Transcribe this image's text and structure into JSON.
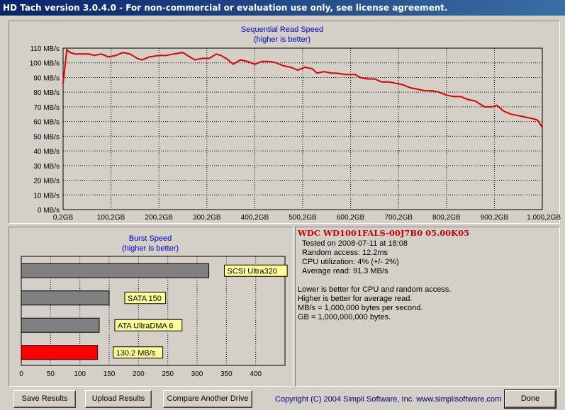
{
  "window": {
    "title": "HD Tach version 3.0.4.0  - For non-commercial or evaluation use only, see license agreement."
  },
  "seq_chart": {
    "title": "Sequential Read Speed",
    "subtitle": "(higher is better)",
    "line_color": "#dd0000"
  },
  "burst_chart": {
    "title": "Burst Speed",
    "subtitle": "(higher is better)"
  },
  "chart_data": [
    {
      "type": "line",
      "title": "Sequential Read Speed",
      "subtitle": "(higher is better)",
      "xlabel": "",
      "ylabel": "",
      "x_ticks": [
        "0,2GB",
        "100,2GB",
        "200,2GB",
        "300,2GB",
        "400,2GB",
        "500,2GB",
        "600,2GB",
        "700,2GB",
        "800,2GB",
        "900,2GB",
        "1.000,2GB"
      ],
      "y_ticks": [
        "0 MB/s",
        "10 MB/s",
        "20 MB/s",
        "30 MB/s",
        "40 MB/s",
        "50 MB/s",
        "60 MB/s",
        "70 MB/s",
        "80 MB/s",
        "90 MB/s",
        "100 MB/s",
        "110 MB/s"
      ],
      "xlim": [
        0.2,
        1000.2
      ],
      "ylim": [
        0,
        110
      ],
      "grid": true,
      "series": [
        {
          "x": [
            0.2,
            8,
            15,
            25,
            40,
            55,
            65,
            80,
            95,
            110,
            125,
            140,
            155,
            165,
            180,
            200,
            215,
            230,
            250,
            260,
            275,
            290,
            305,
            320,
            330,
            345,
            355,
            370,
            385,
            400,
            415,
            430,
            445,
            460,
            475,
            490,
            505,
            520,
            530,
            545,
            560,
            570,
            590,
            610,
            620,
            635,
            650,
            665,
            680,
            695,
            710,
            725,
            740,
            755,
            770,
            785,
            800,
            815,
            830,
            845,
            860,
            870,
            880,
            895,
            905,
            920,
            935,
            950,
            965,
            980,
            990,
            1000.2
          ],
          "values": [
            86,
            109,
            107,
            106,
            106,
            106,
            105,
            106,
            104,
            105,
            107,
            106,
            103,
            102,
            104,
            105,
            105,
            106,
            107,
            105,
            102,
            103,
            103,
            106,
            105,
            102,
            99,
            102,
            101,
            99,
            101,
            101,
            100,
            98,
            97,
            95,
            97,
            96,
            93,
            94,
            93,
            93,
            92,
            92,
            90,
            89,
            89,
            87,
            87,
            86,
            85,
            83,
            82,
            81,
            81,
            80,
            78,
            77,
            77,
            75,
            74,
            72,
            70,
            70,
            71,
            67,
            65,
            64,
            63,
            62,
            61,
            56
          ]
        }
      ]
    },
    {
      "type": "bar",
      "title": "Burst Speed",
      "subtitle": "(higher is better)",
      "orientation": "horizontal",
      "xlim": [
        0,
        450
      ],
      "x_ticks": [
        "0",
        "50",
        "100",
        "150",
        "200",
        "250",
        "300",
        "350",
        "400"
      ],
      "grid": true,
      "categories": [
        "SCSI Ultra320",
        "SATA 150",
        "ATA UltraDMA 6",
        "130.2 MB/s"
      ],
      "values": [
        320,
        150,
        133,
        130.2
      ],
      "colors": [
        "#808080",
        "#808080",
        "#808080",
        "#ff0000"
      ],
      "label_bg": "#ffff99"
    }
  ],
  "info": {
    "drive": "WDC WD1001FALS-00J7B0 05.00K05",
    "tested": "Tested on 2008-07-11 at 18:08",
    "random_access": "Random access: 12.2ms",
    "cpu": "CPU utilization: 4% (+/- 2%)",
    "avg_read": "Average read: 91.3 MB/s",
    "note1": "Lower is better for CPU and random access.",
    "note2": "Higher is better for average read.",
    "note3": "MB/s = 1,000,000 bytes per second.",
    "note4": "GB = 1,000,000,000 bytes."
  },
  "buttons": {
    "save": "Save Results",
    "upload": "Upload Results",
    "compare": "Compare Another Drive",
    "done": "Done"
  },
  "footer": {
    "copyright": "Copyright (C) 2004 Simpli Software, Inc. www.simplisoftware.com"
  }
}
